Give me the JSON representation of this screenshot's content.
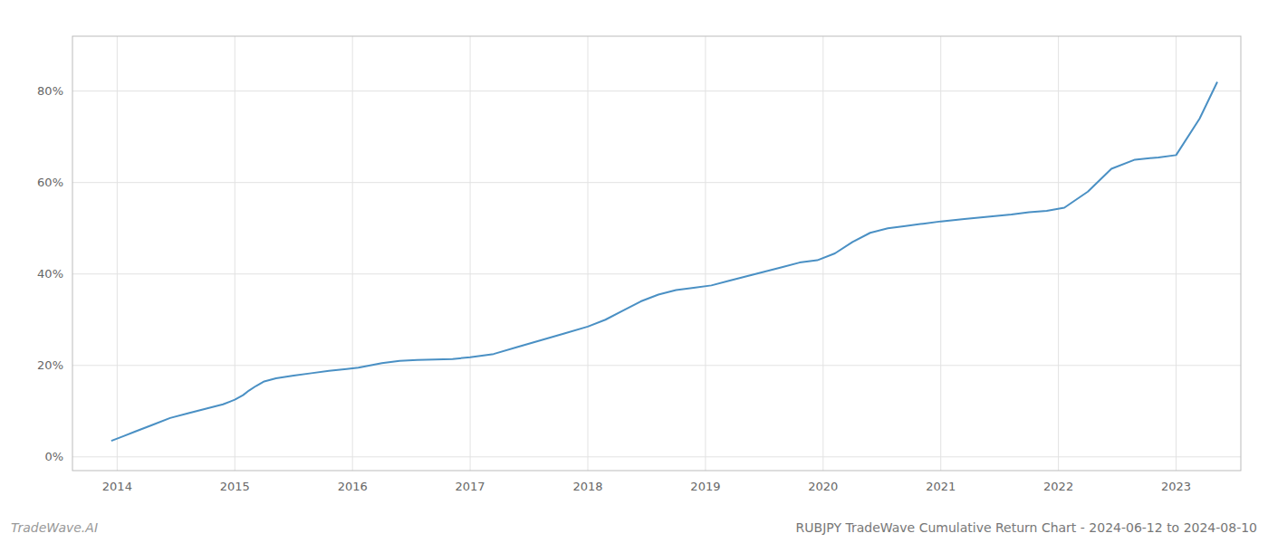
{
  "chart_data": {
    "type": "line",
    "title": "RUBJPY TradeWave Cumulative Return Chart - 2024-06-12 to 2024-08-10",
    "annotations": [
      "TradeWave.AI"
    ],
    "color": "#4a90c4",
    "grid": true,
    "xlim": [
      2013.62,
      2023.55
    ],
    "ylim": [
      -3,
      92
    ],
    "xticks": [
      2014,
      2015,
      2016,
      2017,
      2018,
      2019,
      2020,
      2021,
      2022,
      2023
    ],
    "yticks": [
      {
        "value": 0,
        "label": "0%"
      },
      {
        "value": 20,
        "label": "20%"
      },
      {
        "value": 40,
        "label": "40%"
      },
      {
        "value": 60,
        "label": "60%"
      },
      {
        "value": 80,
        "label": "80%"
      }
    ],
    "x": [
      2013.95,
      2014.05,
      2014.15,
      2014.3,
      2014.45,
      2014.6,
      2014.75,
      2014.9,
      2015.0,
      2015.07,
      2015.12,
      2015.18,
      2015.25,
      2015.35,
      2015.5,
      2015.65,
      2015.8,
      2015.95,
      2016.05,
      2016.15,
      2016.25,
      2016.4,
      2016.55,
      2016.7,
      2016.85,
      2017.0,
      2017.2,
      2017.4,
      2017.6,
      2017.8,
      2018.0,
      2018.15,
      2018.3,
      2018.45,
      2018.6,
      2018.75,
      2018.9,
      2019.05,
      2019.2,
      2019.35,
      2019.5,
      2019.65,
      2019.8,
      2019.95,
      2020.1,
      2020.25,
      2020.4,
      2020.55,
      2020.7,
      2020.85,
      2021.0,
      2021.2,
      2021.4,
      2021.6,
      2021.75,
      2021.9,
      2022.05,
      2022.25,
      2022.45,
      2022.65,
      2022.85,
      2023.0,
      2023.2,
      2023.35
    ],
    "values": [
      3.5,
      4.5,
      5.5,
      7.0,
      8.5,
      9.5,
      10.5,
      11.5,
      12.5,
      13.5,
      14.5,
      15.5,
      16.5,
      17.2,
      17.8,
      18.3,
      18.8,
      19.2,
      19.5,
      20.0,
      20.5,
      21.0,
      21.2,
      21.3,
      21.4,
      21.8,
      22.5,
      24.0,
      25.5,
      27.0,
      28.5,
      30.0,
      32.0,
      34.0,
      35.5,
      36.5,
      37.0,
      37.5,
      38.5,
      39.5,
      40.5,
      41.5,
      42.5,
      43.0,
      44.5,
      47.0,
      49.0,
      50.0,
      50.5,
      51.0,
      51.5,
      52.0,
      52.5,
      53.0,
      53.5,
      53.8,
      54.5,
      58.0,
      63.0,
      65.0,
      65.5,
      66.0,
      74.0,
      82.0
    ]
  }
}
